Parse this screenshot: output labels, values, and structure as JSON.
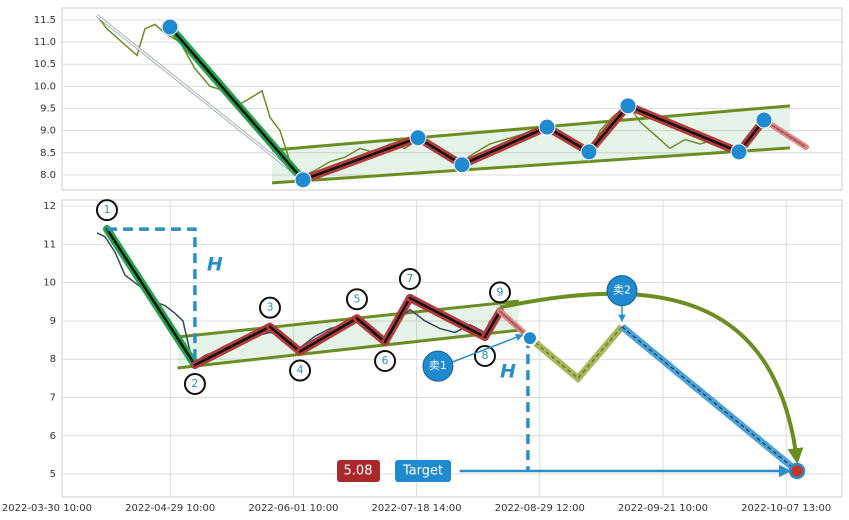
{
  "chart_data": [
    {
      "type": "line",
      "grid": true,
      "xlim": [
        0,
        780
      ],
      "ylim": [
        7.66,
        11.77
      ],
      "yticks": [
        {
          "value": 8,
          "label": "8.0"
        },
        {
          "value": 8.5,
          "label": "8.5"
        },
        {
          "value": 9,
          "label": "9.0"
        },
        {
          "value": 9.5,
          "label": "9.5"
        },
        {
          "value": 10,
          "label": "10.0"
        },
        {
          "value": 10.5,
          "label": "10.5"
        },
        {
          "value": 11,
          "label": "11.0"
        },
        {
          "value": 11.5,
          "label": "11.5"
        }
      ],
      "price": {
        "color": "#6b8e23",
        "x": [
          35,
          45,
          55,
          65,
          75,
          83,
          93,
          103,
          118,
          133,
          148,
          163,
          178,
          193,
          200,
          208,
          218,
          228,
          238,
          253,
          268,
          283,
          298,
          313,
          328,
          343,
          356,
          368,
          383,
          400,
          413,
          428,
          443,
          458,
          473,
          485,
          498,
          513,
          527,
          538,
          550,
          566,
          578,
          593,
          608,
          623,
          638,
          653,
          668,
          677,
          688,
          702
        ],
        "values": [
          11.6,
          11.3,
          11.1,
          10.9,
          10.7,
          11.3,
          11.4,
          11.2,
          11.0,
          10.4,
          10.0,
          9.9,
          9.6,
          9.8,
          9.9,
          9.3,
          9.0,
          8.3,
          7.95,
          8.1,
          8.3,
          8.4,
          8.6,
          8.5,
          8.7,
          8.6,
          8.8,
          8.6,
          8.4,
          8.3,
          8.5,
          8.7,
          8.8,
          8.9,
          9.0,
          9.1,
          8.9,
          8.7,
          8.5,
          9.0,
          9.3,
          9.6,
          9.2,
          8.9,
          8.6,
          8.8,
          8.7,
          8.8,
          8.6,
          8.5,
          8.9,
          9.2
        ]
      },
      "trend_line": {
        "x": [
          35,
          241
        ],
        "values": [
          11.6,
          7.89
        ]
      },
      "zigzag": {
        "x": [
          108,
          241,
          356,
          400,
          485,
          527,
          566,
          677,
          702,
          744
        ],
        "values": [
          11.34,
          7.89,
          8.84,
          8.23,
          9.08,
          8.52,
          9.56,
          8.52,
          9.24,
          8.63
        ]
      },
      "channel": {
        "x": [
          210,
          728
        ],
        "upper": [
          8.56,
          9.56
        ],
        "lower": [
          7.82,
          8.61
        ],
        "color": "#6b8e23"
      }
    },
    {
      "type": "line",
      "grid": true,
      "xlim": [
        0.122,
        6.453
      ],
      "ylim": [
        4.4,
        12.16
      ],
      "xticks": [
        {
          "value": 0,
          "label": "2022-03-30 10:00"
        },
        {
          "value": 1,
          "label": "2022-04-29 10:00"
        },
        {
          "value": 2,
          "label": "2022-06-01 10:00"
        },
        {
          "value": 3,
          "label": "2022-07-18 14:00"
        },
        {
          "value": 4,
          "label": "2022-08-29 12:00"
        },
        {
          "value": 5,
          "label": "2022-09-21 10:00"
        },
        {
          "value": 6,
          "label": "2022-10-07 13:00"
        }
      ],
      "yticks": [
        5,
        6,
        7,
        8,
        9,
        10,
        11,
        12
      ],
      "price": {
        "color": "#3a4660",
        "x": [
          0.406,
          0.471,
          0.552,
          0.633,
          0.714,
          0.795,
          0.877,
          0.958,
          1.039,
          1.104,
          1.161,
          1.218,
          1.282,
          1.364,
          1.445,
          1.567,
          1.688,
          1.81,
          1.932,
          2.054,
          2.175,
          2.297,
          2.419,
          2.516,
          2.622,
          2.744,
          2.849,
          2.946,
          3.068,
          3.19,
          3.312,
          3.433,
          3.555,
          3.596
        ],
        "values": [
          11.3,
          11.2,
          10.8,
          10.2,
          10.0,
          9.8,
          9.5,
          9.4,
          9.2,
          9.0,
          8.2,
          7.95,
          8.1,
          8.2,
          8.35,
          8.5,
          8.6,
          8.7,
          8.6,
          8.3,
          8.6,
          8.8,
          8.9,
          9.0,
          8.8,
          8.5,
          9.0,
          9.3,
          9.0,
          8.8,
          8.7,
          8.9,
          8.7,
          9.0
        ]
      },
      "zigzag": {
        "x": [
          0.487,
          1.201,
          1.81,
          2.054,
          2.516,
          2.744,
          2.946,
          3.555,
          3.677,
          3.92
        ],
        "values": [
          11.4,
          7.85,
          8.85,
          8.2,
          9.07,
          8.45,
          9.6,
          8.58,
          9.25,
          8.55
        ],
        "labels": [
          "1",
          "2",
          "3",
          "4",
          "5",
          "6",
          "7",
          "8",
          "9"
        ]
      },
      "channel": {
        "x": [
          1.06,
          3.83
        ],
        "upper": [
          8.58,
          9.52
        ],
        "lower": [
          7.77,
          8.76
        ],
        "color": "#6b8e23"
      },
      "h_label": "H",
      "sells": [
        {
          "label": "卖1",
          "x": 3.92,
          "value": 8.55
        },
        {
          "label": "卖2",
          "x": 4.667,
          "value": 8.85
        }
      ],
      "projection": {
        "x": [
          3.92,
          4.31,
          4.667
        ],
        "values": [
          8.55,
          7.5,
          8.85
        ]
      },
      "target": {
        "label": "Target",
        "value": 5.08,
        "value_label": "5.08",
        "x": [
          3.35,
          6.088
        ]
      }
    }
  ]
}
